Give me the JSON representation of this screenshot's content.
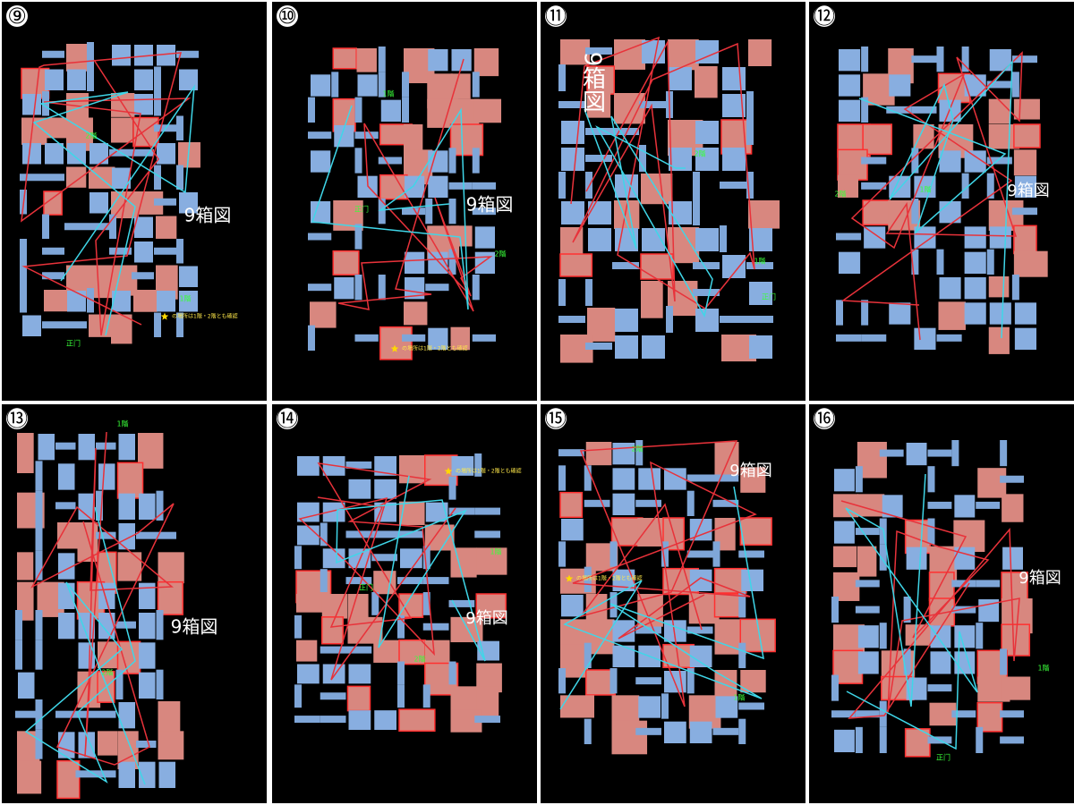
{
  "panels": [
    {
      "number": "⑨",
      "title": "9箱図",
      "labels": [
        "2階",
        "1階",
        "正门"
      ],
      "note": "の場所は1階・2階とも確認"
    },
    {
      "number": "⑩",
      "title": "9箱図",
      "labels": [
        "1階",
        "2階",
        "正门"
      ],
      "note": "の場所は1階・2階とも確認"
    },
    {
      "number": "⑪",
      "title": "9箱図",
      "labels": [
        "2階",
        "1階",
        "正门"
      ]
    },
    {
      "number": "⑫",
      "title": "9箱図",
      "labels": [
        "2階",
        "1階"
      ]
    },
    {
      "number": "⑬",
      "title": "9箱図",
      "labels": [
        "1階",
        "2階"
      ]
    },
    {
      "number": "⑭",
      "title": "9箱図",
      "labels": [
        "1階",
        "2階",
        "正门"
      ],
      "note": "の場所は1階・2階とも確認"
    },
    {
      "number": "⑮",
      "title": "9箱図",
      "labels": [
        "2階",
        "1階"
      ],
      "note": "の場所は1階・2階とも確認"
    },
    {
      "number": "⑯",
      "title": "9箱図",
      "labels": [
        "1階",
        "正门"
      ]
    }
  ]
}
